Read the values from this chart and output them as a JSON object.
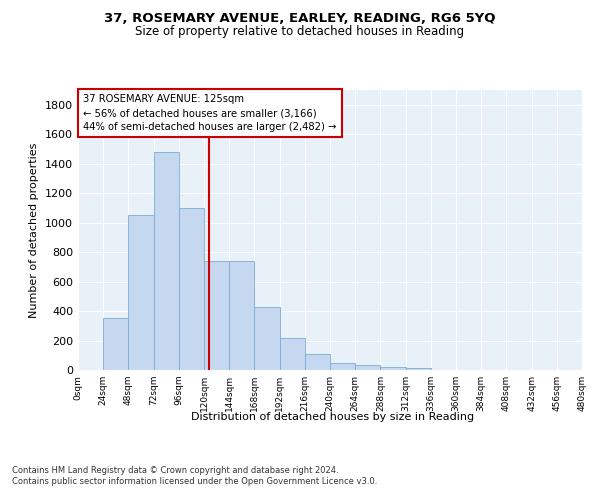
{
  "title": "37, ROSEMARY AVENUE, EARLEY, READING, RG6 5YQ",
  "subtitle": "Size of property relative to detached houses in Reading",
  "xlabel": "Distribution of detached houses by size in Reading",
  "ylabel": "Number of detached properties",
  "bar_color": "#c5d8ef",
  "bar_edge_color": "#7aadd4",
  "background_color": "#e8f0f8",
  "grid_color": "#ffffff",
  "annotation_line_color": "#cc0000",
  "annotation_box_color": "#cc0000",
  "property_sqm": 125,
  "annotation_text_line1": "37 ROSEMARY AVENUE: 125sqm",
  "annotation_text_line2": "← 56% of detached houses are smaller (3,166)",
  "annotation_text_line3": "44% of semi-detached houses are larger (2,482) →",
  "footer_line1": "Contains HM Land Registry data © Crown copyright and database right 2024.",
  "footer_line2": "Contains public sector information licensed under the Open Government Licence v3.0.",
  "bin_edges": [
    0,
    24,
    48,
    72,
    96,
    120,
    144,
    168,
    192,
    216,
    240,
    264,
    288,
    312,
    336,
    360,
    384,
    408,
    432,
    456,
    480
  ],
  "bin_labels": [
    "0sqm",
    "24sqm",
    "48sqm",
    "72sqm",
    "96sqm",
    "120sqm",
    "144sqm",
    "168sqm",
    "192sqm",
    "216sqm",
    "240sqm",
    "264sqm",
    "288sqm",
    "312sqm",
    "336sqm",
    "360sqm",
    "384sqm",
    "408sqm",
    "432sqm",
    "456sqm",
    "480sqm"
  ],
  "bar_heights": [
    0,
    350,
    1050,
    1480,
    1100,
    740,
    740,
    430,
    220,
    110,
    50,
    35,
    20,
    15,
    0,
    0,
    0,
    0,
    0,
    0
  ],
  "ylim": [
    0,
    1900
  ],
  "xlim": [
    0,
    480
  ],
  "yticks": [
    0,
    200,
    400,
    600,
    800,
    1000,
    1200,
    1400,
    1600,
    1800
  ]
}
